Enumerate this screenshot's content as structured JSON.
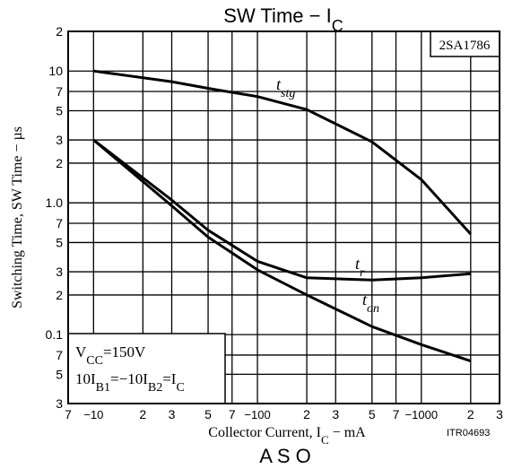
{
  "chart_data": {
    "type": "line",
    "title": [
      "SW Time  −  I",
      "C"
    ],
    "x_label": [
      "Collector Current, I",
      "C",
      "  −  mA"
    ],
    "y_label": "Switching Time,  SW Time  −  µs",
    "part_label": "2SA1786",
    "condition_1": [
      "V",
      "CC",
      "=150V"
    ],
    "condition_2": [
      "10I",
      "B1",
      "=−10I",
      "B2",
      "=I",
      "C"
    ],
    "figure_code": "ITR04693",
    "next_title": "A S O",
    "log_x": true,
    "log_y": true,
    "grid": true,
    "xlim": [
      -7,
      -3000
    ],
    "ylim": [
      0.03,
      20
    ],
    "xticks": [
      {
        "value": -7,
        "label": "7"
      },
      {
        "value": -10,
        "label": "−10"
      },
      {
        "value": -20,
        "label": "2"
      },
      {
        "value": -30,
        "label": "3"
      },
      {
        "value": -50,
        "label": "5"
      },
      {
        "value": -70,
        "label": "7"
      },
      {
        "value": -100,
        "label": "−100"
      },
      {
        "value": -200,
        "label": "2"
      },
      {
        "value": -300,
        "label": "3"
      },
      {
        "value": -500,
        "label": "5"
      },
      {
        "value": -700,
        "label": "7"
      },
      {
        "value": -1000,
        "label": "−1000"
      },
      {
        "value": -2000,
        "label": "2"
      },
      {
        "value": -3000,
        "label": "3"
      }
    ],
    "yticks": [
      {
        "value": 20,
        "label": "2"
      },
      10,
      7,
      5,
      3,
      2,
      {
        "value": 1,
        "label": "1.0"
      },
      {
        "value": 0.7,
        "label": "7"
      },
      {
        "value": 0.5,
        "label": "5"
      },
      {
        "value": 0.3,
        "label": "3"
      },
      {
        "value": 0.2,
        "label": "2"
      },
      0.1,
      {
        "value": 0.07,
        "label": "7"
      },
      {
        "value": 0.05,
        "label": "5"
      },
      {
        "value": 0.03,
        "label": "3"
      }
    ],
    "x": [
      -10,
      -30,
      -50,
      -100,
      -200,
      -500,
      -1000,
      -2000
    ],
    "series": [
      {
        "name": [
          "t",
          "stg"
        ],
        "color": "#000000",
        "values": [
          10,
          8.3,
          7.4,
          6.4,
          5.1,
          2.9,
          1.5,
          0.58
        ]
      },
      {
        "name": [
          "t",
          "r"
        ],
        "color": "#000000",
        "values": [
          3,
          1.05,
          0.62,
          0.36,
          0.27,
          0.26,
          0.27,
          0.29
        ]
      },
      {
        "name": [
          "t",
          "on"
        ],
        "color": "#000000",
        "values": [
          3,
          0.95,
          0.55,
          0.31,
          0.2,
          0.115,
          0.084,
          0.063
        ]
      }
    ]
  }
}
